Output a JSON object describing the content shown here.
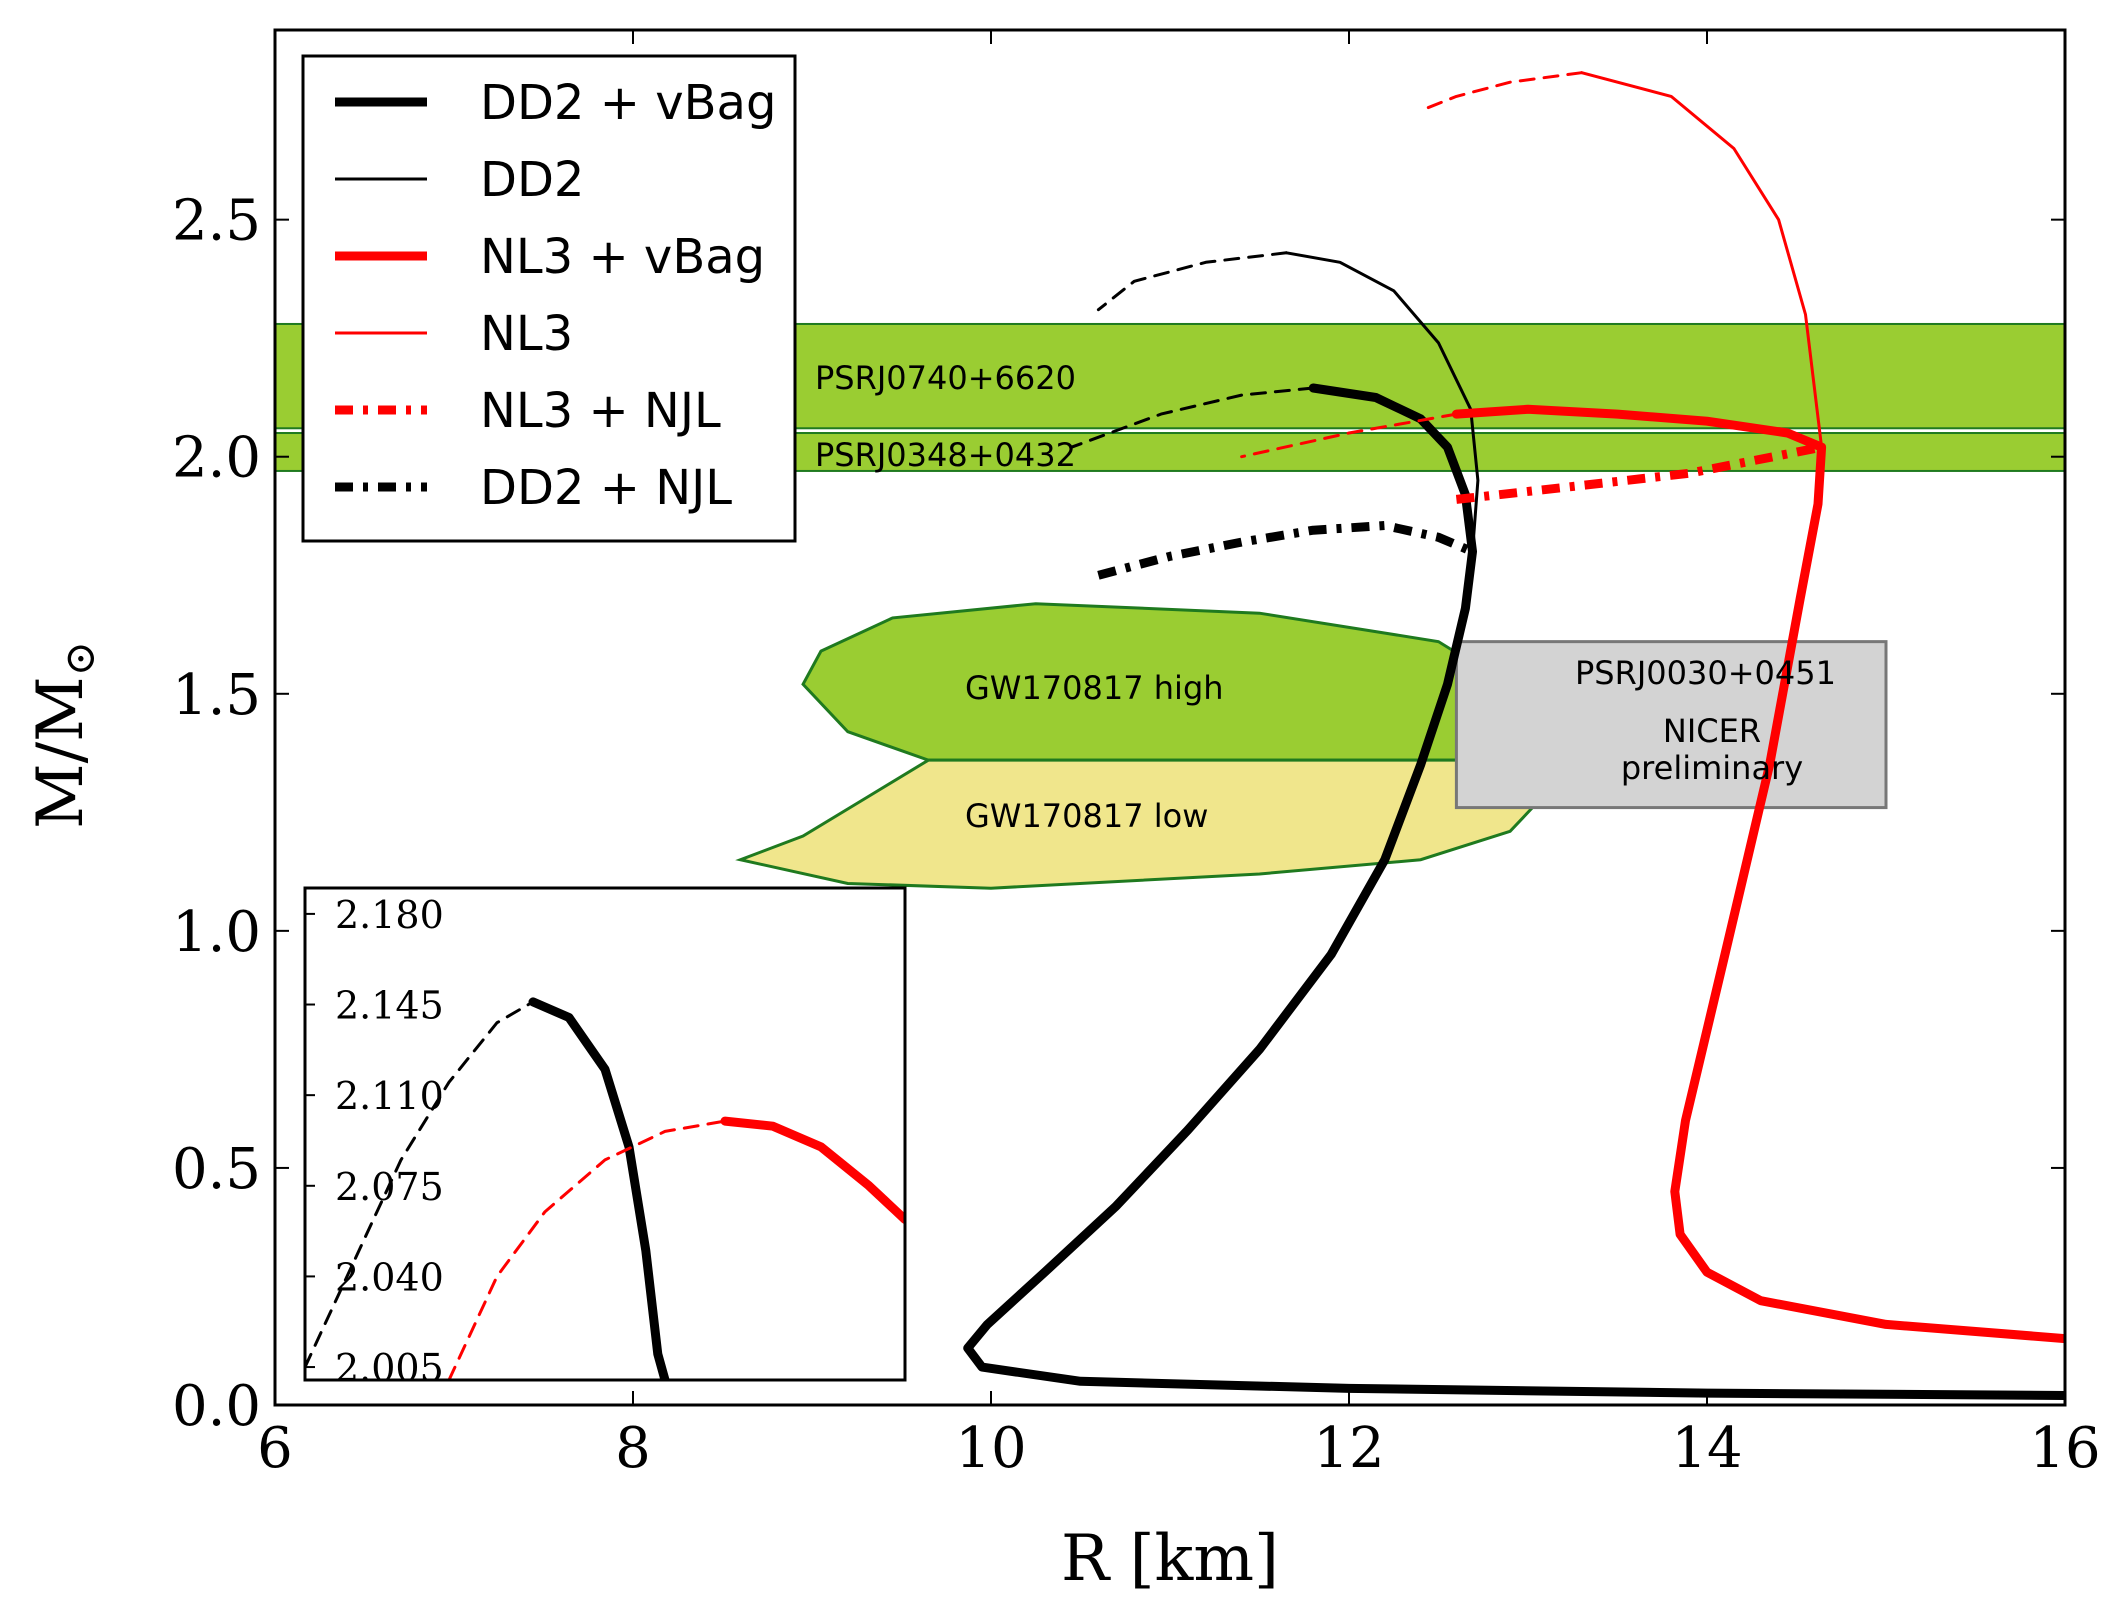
{
  "chart_data": {
    "type": "line",
    "title": "",
    "xlabel": "R [km]",
    "ylabel_main": "M/M",
    "ylabel_sub": "⊙",
    "xlim": [
      6,
      16
    ],
    "ylim": [
      0,
      2.9
    ],
    "xticks": [
      "6",
      "8",
      "10",
      "12",
      "14",
      "16"
    ],
    "yticks": [
      "0.0",
      "0.5",
      "1.0",
      "1.5",
      "2.0",
      "2.5"
    ],
    "xtick_values": [
      6,
      8,
      10,
      12,
      14,
      16
    ],
    "ytick_values": [
      0,
      0.5,
      1.0,
      1.5,
      2.0,
      2.5
    ],
    "legend_position": "top-left",
    "legend": [
      {
        "label": "DD2 + vBag",
        "color": "#000000",
        "style": "thick-solid"
      },
      {
        "label": "DD2",
        "color": "#000000",
        "style": "thin-solid"
      },
      {
        "label": "NL3 + vBag",
        "color": "#ff0000",
        "style": "thick-solid"
      },
      {
        "label": "NL3",
        "color": "#ff0000",
        "style": "thin-solid"
      },
      {
        "label": "NL3 + NJL",
        "color": "#ff0000",
        "style": "dash-dot"
      },
      {
        "label": "DD2 + NJL",
        "color": "#000000",
        "style": "dash-dot"
      }
    ],
    "bands": [
      {
        "label": "PSRJ0740+6620",
        "y_range": [
          2.06,
          2.28
        ],
        "x_range": [
          6,
          16
        ],
        "color": "#9acd32"
      },
      {
        "label": "PSRJ0348+0432",
        "y_range": [
          1.97,
          2.05
        ],
        "x_range": [
          6,
          16
        ],
        "color": "#9acd32"
      }
    ],
    "regions": [
      {
        "label": "GW170817 high",
        "color": "#9acd32",
        "points": [
          [
            9.05,
            1.59
          ],
          [
            9.45,
            1.66
          ],
          [
            10.25,
            1.69
          ],
          [
            11.5,
            1.67
          ],
          [
            12.5,
            1.61
          ],
          [
            13.1,
            1.47
          ],
          [
            13.35,
            1.44
          ],
          [
            13.45,
            1.36
          ],
          [
            9.65,
            1.36
          ],
          [
            9.2,
            1.42
          ],
          [
            8.95,
            1.52
          ]
        ]
      },
      {
        "label": "GW170817 low",
        "color": "#f0e68c",
        "points": [
          [
            9.65,
            1.36
          ],
          [
            13.0,
            1.36
          ],
          [
            13.05,
            1.27
          ],
          [
            12.9,
            1.21
          ],
          [
            12.4,
            1.15
          ],
          [
            11.5,
            1.12
          ],
          [
            10.0,
            1.09
          ],
          [
            9.2,
            1.1
          ],
          [
            8.6,
            1.15
          ],
          [
            8.95,
            1.2
          ],
          [
            9.3,
            1.28
          ]
        ]
      },
      {
        "label": "PSRJ0030+0451",
        "sublabel": "NICER",
        "sublabel2": "preliminary",
        "color": "#d3d3d3",
        "x_range": [
          12.6,
          15.0
        ],
        "y_range": [
          1.26,
          1.61
        ]
      }
    ],
    "series": [
      {
        "name": "DD2 + vBag",
        "color": "#000000",
        "style": "thick-solid",
        "points": [
          [
            16.0,
            0.02
          ],
          [
            14.0,
            0.025
          ],
          [
            12.0,
            0.035
          ],
          [
            10.5,
            0.05
          ],
          [
            9.95,
            0.08
          ],
          [
            9.87,
            0.12
          ],
          [
            9.98,
            0.17
          ],
          [
            10.3,
            0.28
          ],
          [
            10.7,
            0.42
          ],
          [
            11.1,
            0.58
          ],
          [
            11.5,
            0.75
          ],
          [
            11.9,
            0.95
          ],
          [
            12.2,
            1.15
          ],
          [
            12.4,
            1.35
          ],
          [
            12.55,
            1.52
          ],
          [
            12.65,
            1.68
          ],
          [
            12.69,
            1.8
          ],
          [
            12.65,
            1.92
          ],
          [
            12.55,
            2.02
          ],
          [
            12.4,
            2.08
          ],
          [
            12.15,
            2.125
          ],
          [
            11.8,
            2.145
          ]
        ]
      },
      {
        "name": "DD2 + vBag (unstable)",
        "color": "#000000",
        "style": "dashed",
        "points": [
          [
            11.8,
            2.145
          ],
          [
            11.4,
            2.13
          ],
          [
            10.95,
            2.09
          ],
          [
            10.45,
            2.02
          ]
        ]
      },
      {
        "name": "DD2",
        "color": "#000000",
        "style": "thin-solid",
        "points": [
          [
            12.69,
            1.8
          ],
          [
            12.72,
            1.95
          ],
          [
            12.68,
            2.1
          ],
          [
            12.5,
            2.24
          ],
          [
            12.25,
            2.35
          ],
          [
            11.95,
            2.41
          ],
          [
            11.65,
            2.43
          ]
        ]
      },
      {
        "name": "DD2 (unstable)",
        "color": "#000000",
        "style": "dashed",
        "points": [
          [
            11.65,
            2.43
          ],
          [
            11.2,
            2.41
          ],
          [
            10.8,
            2.37
          ],
          [
            10.6,
            2.31
          ]
        ]
      },
      {
        "name": "NL3 + vBag",
        "color": "#ff0000",
        "style": "thick-solid",
        "points": [
          [
            16.0,
            0.14
          ],
          [
            15.0,
            0.17
          ],
          [
            14.3,
            0.22
          ],
          [
            14.0,
            0.28
          ],
          [
            13.85,
            0.36
          ],
          [
            13.82,
            0.45
          ],
          [
            13.88,
            0.6
          ],
          [
            14.1,
            0.95
          ],
          [
            14.35,
            1.35
          ],
          [
            14.52,
            1.7
          ],
          [
            14.62,
            1.9
          ],
          [
            14.64,
            2.02
          ],
          [
            14.45,
            2.05
          ],
          [
            14.0,
            2.075
          ],
          [
            13.5,
            2.09
          ],
          [
            13.0,
            2.1
          ],
          [
            12.6,
            2.09
          ]
        ]
      },
      {
        "name": "NL3 + vBag (unstable)",
        "color": "#ff0000",
        "style": "dashed",
        "points": [
          [
            12.6,
            2.09
          ],
          [
            12.0,
            2.05
          ],
          [
            11.4,
            2.0
          ]
        ]
      },
      {
        "name": "NL3",
        "color": "#ff0000",
        "style": "thin-solid",
        "points": [
          [
            14.64,
            2.02
          ],
          [
            14.55,
            2.3
          ],
          [
            14.4,
            2.5
          ],
          [
            14.15,
            2.65
          ],
          [
            13.8,
            2.76
          ],
          [
            13.3,
            2.81
          ]
        ]
      },
      {
        "name": "NL3 (unstable)",
        "color": "#ff0000",
        "style": "dashed",
        "points": [
          [
            13.3,
            2.81
          ],
          [
            12.9,
            2.79
          ],
          [
            12.6,
            2.76
          ],
          [
            12.4,
            2.73
          ]
        ]
      },
      {
        "name": "NL3 + NJL",
        "color": "#ff0000",
        "style": "dash-dot",
        "points": [
          [
            12.6,
            1.91
          ],
          [
            13.2,
            1.935
          ],
          [
            13.9,
            1.965
          ],
          [
            14.64,
            2.02
          ]
        ]
      },
      {
        "name": "DD2 + NJL",
        "color": "#000000",
        "style": "dash-dot",
        "points": [
          [
            10.6,
            1.75
          ],
          [
            11.0,
            1.79
          ],
          [
            11.4,
            1.82
          ],
          [
            11.8,
            1.845
          ],
          [
            12.2,
            1.855
          ],
          [
            12.5,
            1.83
          ],
          [
            12.69,
            1.8
          ]
        ]
      }
    ],
    "inset": {
      "xlim": [
        7.0,
        9.5
      ],
      "ylim": [
        2.0,
        2.19
      ],
      "yticks": [
        "2.005",
        "2.040",
        "2.075",
        "2.110",
        "2.145",
        "2.180"
      ],
      "ytick_values": [
        2.005,
        2.04,
        2.075,
        2.11,
        2.145,
        2.18
      ],
      "series": [
        {
          "name": "DD2 + vBag zoom (unstable)",
          "color": "#000000",
          "style": "dashed",
          "points": [
            [
              7.0,
              2.005
            ],
            [
              7.2,
              2.045
            ],
            [
              7.4,
              2.085
            ],
            [
              7.6,
              2.115
            ],
            [
              7.8,
              2.138
            ],
            [
              7.95,
              2.146
            ]
          ]
        },
        {
          "name": "DD2 + vBag zoom",
          "color": "#000000",
          "style": "thick-solid",
          "points": [
            [
              7.95,
              2.146
            ],
            [
              8.1,
              2.14
            ],
            [
              8.25,
              2.12
            ],
            [
              8.35,
              2.09
            ],
            [
              8.42,
              2.05
            ],
            [
              8.47,
              2.01
            ],
            [
              8.5,
              2.0
            ]
          ]
        },
        {
          "name": "NL3 + vBag zoom (unstable)",
          "color": "#ff0000",
          "style": "dashed",
          "points": [
            [
              7.6,
              2.0
            ],
            [
              7.8,
              2.04
            ],
            [
              8.0,
              2.065
            ],
            [
              8.25,
              2.085
            ],
            [
              8.5,
              2.096
            ],
            [
              8.75,
              2.1
            ]
          ]
        },
        {
          "name": "NL3 + vBag zoom",
          "color": "#ff0000",
          "style": "thick-solid",
          "points": [
            [
              8.75,
              2.1
            ],
            [
              8.95,
              2.098
            ],
            [
              9.15,
              2.09
            ],
            [
              9.35,
              2.075
            ],
            [
              9.5,
              2.062
            ]
          ]
        }
      ]
    }
  }
}
